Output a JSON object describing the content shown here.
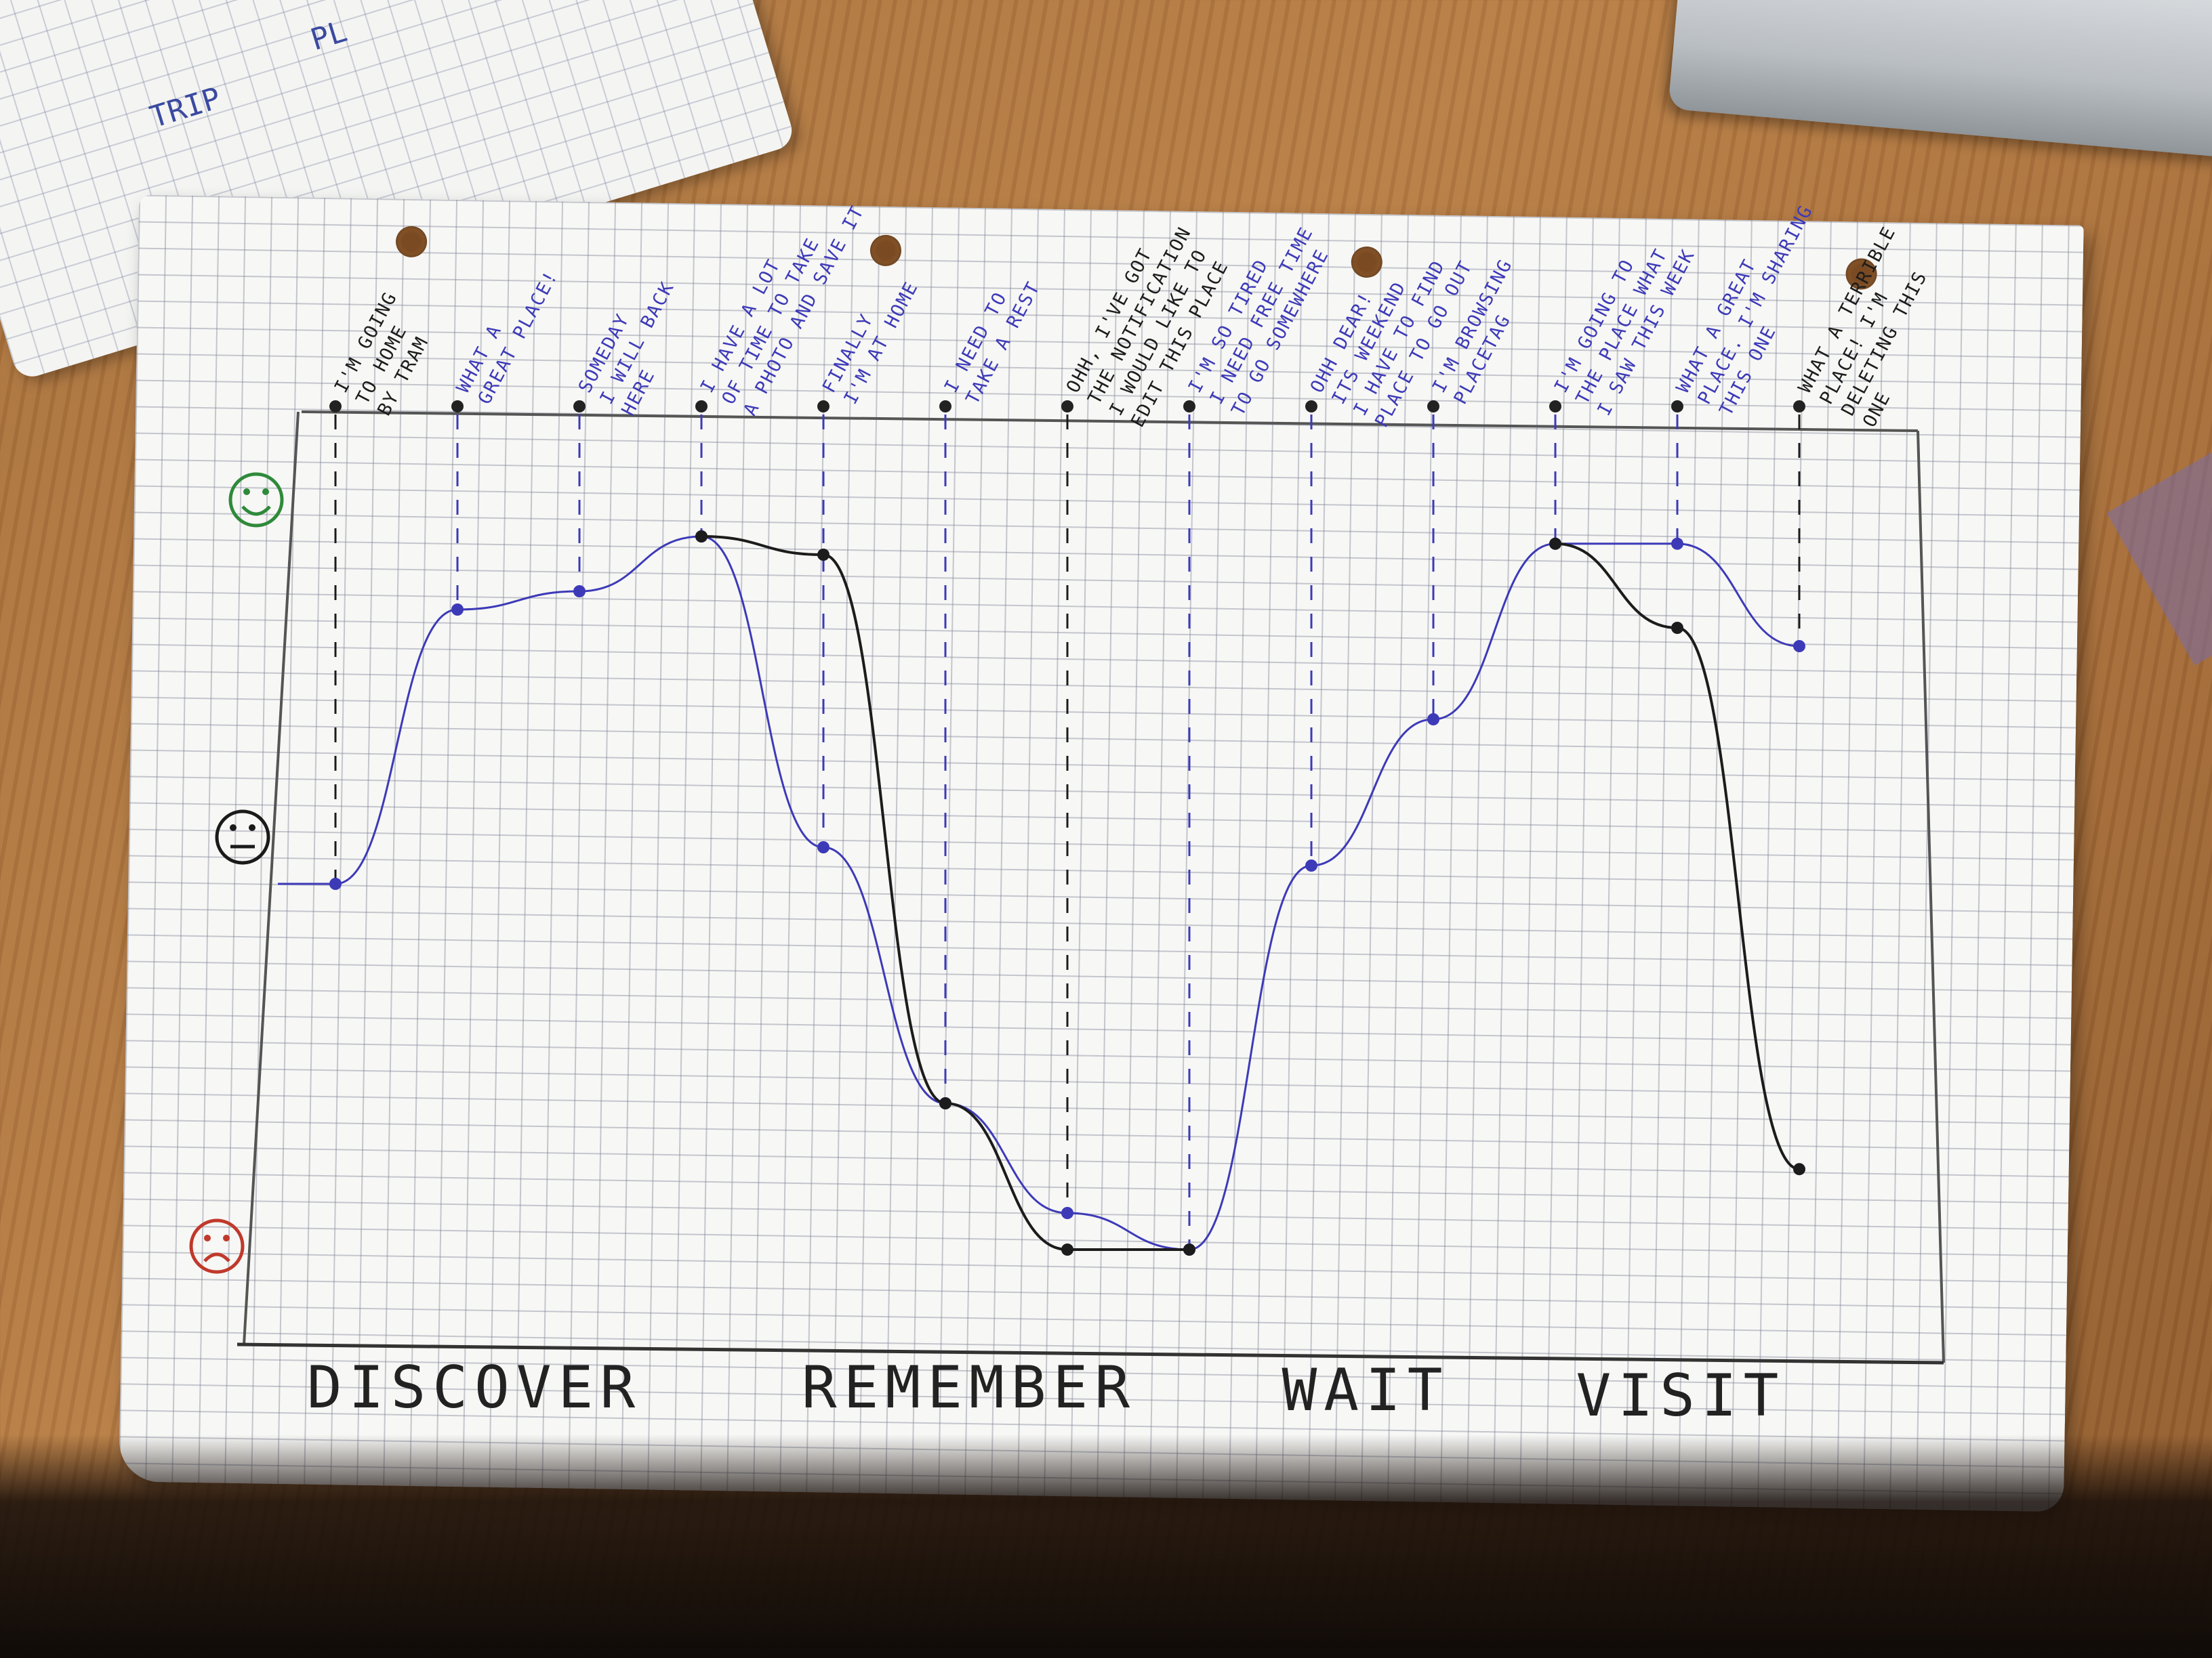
{
  "notebook": {
    "scribbles": [
      "TRIP",
      "PL"
    ]
  },
  "phases": [
    "DISCOVER",
    "REMEMBER",
    "WAIT",
    "VISIT"
  ],
  "moods": {
    "happy": "happy-face",
    "neutral": "neutral-face",
    "sad": "sad-face"
  },
  "colors": {
    "blue_line": "#3d3ab8",
    "black_line": "#1c1c1c",
    "happy": "#2e8a3a",
    "neutral": "#1a1a1a",
    "sad": "#c0392b"
  },
  "annotations": [
    {
      "lines": [
        "I'M GOING",
        "TO HOME",
        "BY TRAM"
      ],
      "color": "black"
    },
    {
      "lines": [
        "WHAT A",
        "GREAT PLACE!"
      ],
      "color": "blue"
    },
    {
      "lines": [
        "SOMEDAY",
        "I WILL BACK",
        "HERE"
      ],
      "color": "blue"
    },
    {
      "lines": [
        "I HAVE A LOT",
        "OF TIME TO TAKE",
        "A PHOTO AND SAVE IT"
      ],
      "color": "blue"
    },
    {
      "lines": [
        "FINALLY",
        "I'M AT HOME"
      ],
      "color": "blue"
    },
    {
      "lines": [
        "I NEED TO",
        "TAKE A REST"
      ],
      "color": "blue"
    },
    {
      "lines": [
        "OHH, I'VE GOT",
        "THE NOTIFICATION",
        "I WOULD LIKE TO",
        "EDIT THIS PLACE"
      ],
      "color": "black"
    },
    {
      "lines": [
        "I'M SO TIRED",
        "I NEED FREE TIME",
        "TO GO SOMEWHERE"
      ],
      "color": "blue"
    },
    {
      "lines": [
        "OHH DEAR!",
        "ITS WEEKEND",
        "I HAVE TO FIND",
        "PLACE TO GO OUT"
      ],
      "color": "blue"
    },
    {
      "lines": [
        "I'M BROWSING",
        "PLACETAG"
      ],
      "color": "blue"
    },
    {
      "lines": [
        "I'M GOING TO",
        "THE PLACE WHAT",
        "I SAW THIS WEEK"
      ],
      "color": "blue"
    },
    {
      "lines": [
        "WHAT A GREAT",
        "PLACE. I'M SHARING",
        "THIS ONE"
      ],
      "color": "blue"
    },
    {
      "lines": [
        "WHAT A TERRIBLE",
        "PLACE! I'M",
        "DELETING THIS",
        "ONE"
      ],
      "color": "black"
    }
  ],
  "chart_data": {
    "type": "line",
    "title": "",
    "xlabel": "",
    "ylabel": "",
    "categories": [
      "DISCOVER",
      "REMEMBER",
      "WAIT",
      "VISIT"
    ],
    "note": "y scale: 1 = sad, 2 = neutral, 3 = happy; x = annotation index 0-12",
    "ylim": [
      1,
      3
    ],
    "series": [
      {
        "name": "",
        "color": "blue",
        "points": [
          [
            0,
            2.0
          ],
          [
            1,
            2.75
          ],
          [
            2,
            2.8
          ],
          [
            3,
            2.95
          ],
          [
            4,
            2.1
          ],
          [
            5,
            1.4
          ],
          [
            6,
            1.1
          ],
          [
            7,
            1.0
          ],
          [
            8,
            2.05
          ],
          [
            9,
            2.45
          ],
          [
            10,
            2.93
          ],
          [
            11,
            2.93
          ],
          [
            12,
            2.65
          ]
        ]
      },
      {
        "name": "",
        "color": "black",
        "points": [
          [
            3,
            2.95
          ],
          [
            4,
            2.9
          ],
          [
            5,
            1.4
          ],
          [
            6,
            1.0
          ],
          [
            7,
            1.0
          ],
          [
            10,
            2.93
          ],
          [
            11,
            2.7
          ],
          [
            12,
            1.22
          ]
        ]
      }
    ]
  }
}
